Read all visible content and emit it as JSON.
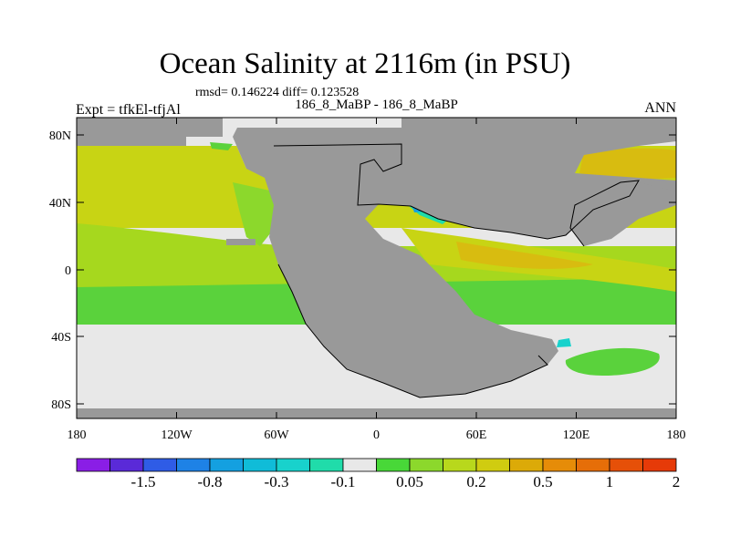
{
  "title": "Ocean Salinity at 2116m (in PSU)",
  "stats": "rmsd= 0.146224 diff= 0.123528",
  "subtitle": "186_8_MaBP - 186_8_MaBP",
  "left_label": "Expt = tfkEl-tfjAl",
  "right_label": "ANN",
  "lat_ticks": [
    "80N",
    "40N",
    "0",
    "40S",
    "80S"
  ],
  "lon_ticks": [
    "180",
    "120W",
    "60W",
    "0",
    "60E",
    "120E",
    "180"
  ],
  "colorbar": {
    "colors": [
      "#8a1ee6",
      "#5a2ad8",
      "#2f5ce6",
      "#1e82e6",
      "#14a0e0",
      "#10bcd8",
      "#18d2cc",
      "#20dcaa",
      "#e8e8e8",
      "#48d838",
      "#8cd82c",
      "#b8d81c",
      "#d0cc10",
      "#dcaa08",
      "#e68c08",
      "#e66e08",
      "#e65008",
      "#e63a08"
    ],
    "labels": [
      {
        "text": "-1.5",
        "boundary": 2
      },
      {
        "text": "-0.8",
        "boundary": 4
      },
      {
        "text": "-0.3",
        "boundary": 6
      },
      {
        "text": "-0.1",
        "boundary": 8
      },
      {
        "text": "0.05",
        "boundary": 10
      },
      {
        "text": "0.2",
        "boundary": 12
      },
      {
        "text": "0.5",
        "boundary": 14
      },
      {
        "text": "1",
        "boundary": 16
      },
      {
        "text": "2",
        "boundary": 18
      }
    ]
  },
  "colors": {
    "land": "#999999",
    "ice_near_zero": "#e8e8e8",
    "green": "#5ad23c",
    "yellow_green": "#a6d81e",
    "yellow": "#c8d414",
    "dark_yellow": "#d8bc10",
    "cyan": "#20dcaa",
    "blue": "#14a0e0"
  }
}
